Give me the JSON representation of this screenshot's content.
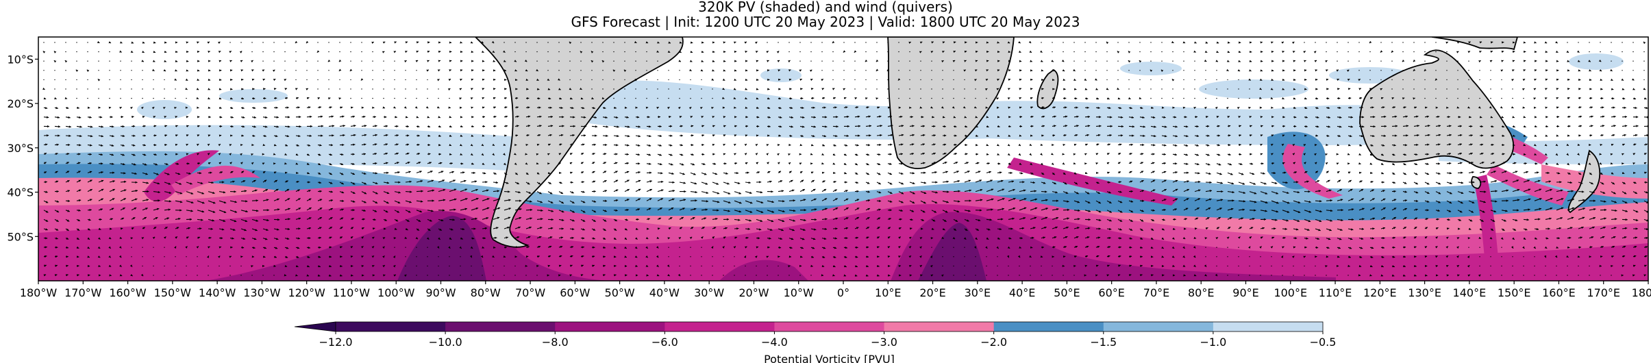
{
  "figure": {
    "title_line1": "320K PV (shaded) and wind (quivers)",
    "title_line2": "GFS Forecast | Init: 1200 UTC 20 May 2023 | Valid: 1800 UTC 20 May 2023"
  },
  "map": {
    "projection": "PlateCarree",
    "extent": {
      "lon": [
        -180,
        180
      ],
      "lat": [
        -60,
        -5
      ]
    },
    "land_color": "#d3d3d3",
    "coastline_color": "#000000",
    "lat_labels": [
      "10°S",
      "20°S",
      "30°S",
      "40°S",
      "50°S"
    ],
    "lat_values": [
      -10,
      -20,
      -30,
      -40,
      -50
    ],
    "lon_labels": [
      "180°W",
      "170°W",
      "160°W",
      "150°W",
      "140°W",
      "130°W",
      "120°W",
      "110°W",
      "100°W",
      "90°W",
      "80°W",
      "70°W",
      "60°W",
      "50°W",
      "40°W",
      "30°W",
      "20°W",
      "10°W",
      "0°",
      "10°E",
      "20°E",
      "30°E",
      "40°E",
      "50°E",
      "60°E",
      "70°E",
      "80°E",
      "90°E",
      "100°E",
      "110°E",
      "120°E",
      "130°E",
      "140°E",
      "150°E",
      "160°E",
      "170°E",
      "180°E"
    ],
    "lon_values": [
      -180,
      -170,
      -160,
      -150,
      -140,
      -130,
      -120,
      -110,
      -100,
      -90,
      -80,
      -70,
      -60,
      -50,
      -40,
      -30,
      -20,
      -10,
      0,
      10,
      20,
      30,
      40,
      50,
      60,
      70,
      80,
      90,
      100,
      110,
      120,
      130,
      140,
      150,
      160,
      170,
      180
    ]
  },
  "colorbar": {
    "label": "Potential Vorticity [PVU]",
    "extend": "min",
    "levels": [
      -12.0,
      -10.0,
      -8.0,
      -6.0,
      -4.0,
      -3.0,
      -2.0,
      -1.5,
      -1.0,
      -0.5
    ],
    "tick_labels": [
      "−12.0",
      "−10.0",
      "−8.0",
      "−6.0",
      "−4.0",
      "−3.0",
      "−2.0",
      "−1.5",
      "−1.0",
      "−0.5"
    ],
    "colors": [
      "#3d0a5e",
      "#6b0f6f",
      "#9c127f",
      "#c4228e",
      "#de4a9e",
      "#f17aa8",
      "#4a8fc4",
      "#85b7dc",
      "#c6ddf0"
    ],
    "extend_color": "#2a0550"
  },
  "wind": {
    "arrow_color": "#000000"
  }
}
